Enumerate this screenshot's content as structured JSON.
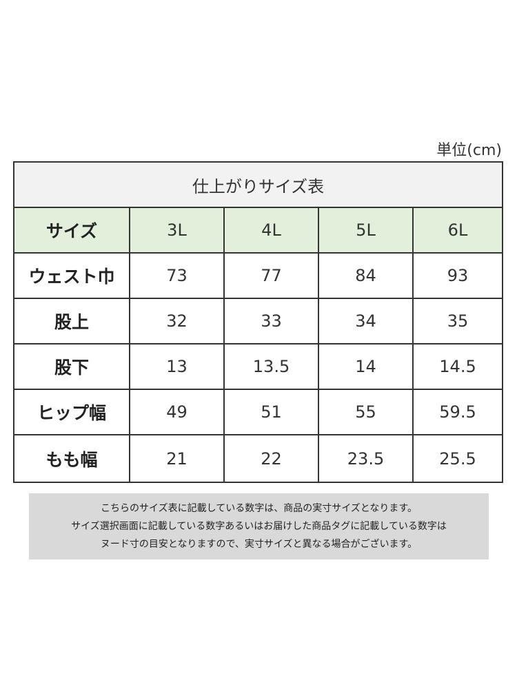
{
  "unit_label": "単位(cm)",
  "table": {
    "caption": "仕上がりサイズ表",
    "header": {
      "label": "サイズ",
      "sizes": [
        "3L",
        "4L",
        "5L",
        "6L"
      ]
    },
    "rows": [
      {
        "label": "ウェスト巾",
        "values": [
          "73",
          "77",
          "84",
          "93"
        ]
      },
      {
        "label": "股上",
        "values": [
          "32",
          "33",
          "34",
          "35"
        ]
      },
      {
        "label": "股下",
        "values": [
          "13",
          "13.5",
          "14",
          "14.5"
        ]
      },
      {
        "label": "ヒップ幅",
        "values": [
          "49",
          "51",
          "55",
          "59.5"
        ]
      },
      {
        "label": "もも幅",
        "values": [
          "21",
          "22",
          "23.5",
          "25.5"
        ]
      }
    ]
  },
  "notice": {
    "lines": [
      "こちらのサイズ表に記載している数字は、商品の実寸サイズとなります。",
      "サイズ選択画面に記載している数字あるいはお届けした商品タグに記載している数字は",
      "ヌード寸の目安となりますので、実寸サイズと異なる場合がございます。"
    ]
  },
  "colors": {
    "header_bg": "#e2efda",
    "caption_bg": "#f2f2f2",
    "notice_bg": "#d9d9d9",
    "border": "#333333"
  }
}
